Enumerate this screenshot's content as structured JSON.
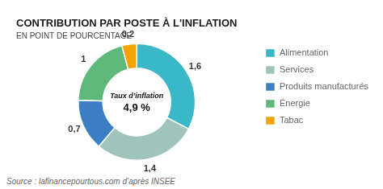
{
  "chart_data": {
    "type": "doughnut",
    "title": "CONTRIBUTION PAR POSTE À L'INFLATION",
    "subtitle": "EN POINT DE POURCENTAGE",
    "source": "Source : lafinancepourtous.com d’après INSEE",
    "annotations": [
      "Taux d’inflation",
      "4,9 %"
    ],
    "categories": [
      "Alimentation",
      "Services",
      "Produits manufacturés",
      "Énergie",
      "Tabac"
    ],
    "values": [
      1.6,
      1.4,
      0.7,
      1.0,
      0.2
    ],
    "value_labels": [
      "1,6",
      "1,4",
      "0,7",
      "1",
      "0,2"
    ],
    "colors": [
      "#3ab8c8",
      "#9fc4bc",
      "#3c7fc4",
      "#5db87a",
      "#f5a200"
    ],
    "data_labels": true,
    "legend": "right"
  }
}
